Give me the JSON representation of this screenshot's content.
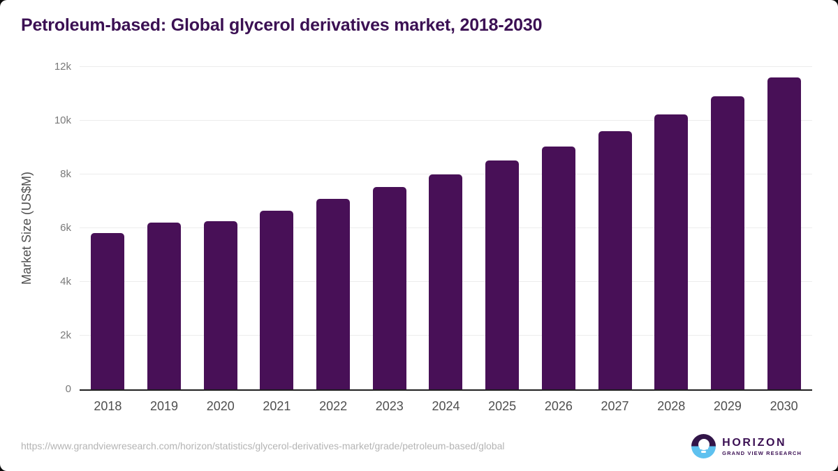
{
  "title": "Petroleum-based: Global glycerol derivatives market, 2018-2030",
  "footer": {
    "source_url": "https://www.grandviewresearch.com/horizon/statistics/glycerol-derivatives-market/grade/petroleum-based/global",
    "logo_name": "HORIZON",
    "logo_subtitle": "GRAND VIEW RESEARCH"
  },
  "colors": {
    "page_bg": "#ffffff",
    "bar": "#481057",
    "heading": "#3b1053",
    "grid": "#ececec",
    "axis_line": "#1f1f1f",
    "tick_text": "#7a7a7a",
    "label_text": "#4f4f4f",
    "axis_title_text": "#4f4f4f",
    "url_text": "#b4b4b4",
    "logo_purple": "#321549",
    "logo_blue": "#5ec1ef"
  },
  "chart_data": {
    "type": "bar",
    "title": "Petroleum-based: Global glycerol derivatives market, 2018-2030",
    "categories": [
      "2018",
      "2019",
      "2020",
      "2021",
      "2022",
      "2023",
      "2024",
      "2025",
      "2026",
      "2027",
      "2028",
      "2029",
      "2030"
    ],
    "values": [
      5830,
      6200,
      6250,
      6640,
      7080,
      7520,
      8000,
      8520,
      9050,
      9620,
      10230,
      10900,
      11620
    ],
    "xlabel": "",
    "ylabel": "Market Size (US$M)",
    "ylim": [
      0,
      12000
    ],
    "yticks": [
      {
        "value": 0,
        "label": "0"
      },
      {
        "value": 2000,
        "label": "2k"
      },
      {
        "value": 4000,
        "label": "4k"
      },
      {
        "value": 6000,
        "label": "6k"
      },
      {
        "value": 8000,
        "label": "8k"
      },
      {
        "value": 10000,
        "label": "10k"
      },
      {
        "value": 12000,
        "label": "12k"
      }
    ],
    "grid": true,
    "legend": false
  }
}
